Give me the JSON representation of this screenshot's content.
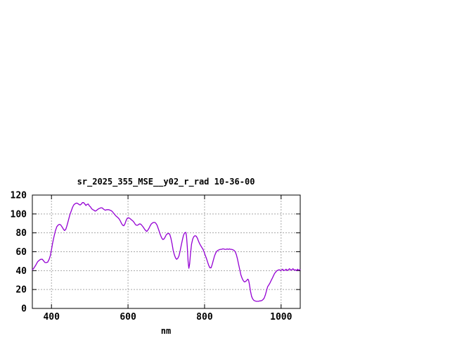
{
  "window": {
    "background": "#ffffff"
  },
  "chart_data": {
    "type": "line",
    "title": "sr_2025_355_MSE__y02_r_rad 10-36-00",
    "xlabel": "nm",
    "ylabel": "",
    "xlim": [
      350,
      1050
    ],
    "ylim": [
      0,
      120
    ],
    "xticks": [
      400,
      600,
      800,
      1000
    ],
    "yticks": [
      0,
      20,
      40,
      60,
      80,
      100,
      120
    ],
    "grid": true,
    "legend_position": "none",
    "line_color": "#9400D3",
    "grid_color": "#a8a8a8",
    "axis_color": "#000000",
    "points": [
      [
        350,
        41
      ],
      [
        353,
        42
      ],
      [
        356,
        44
      ],
      [
        360,
        46.5
      ],
      [
        364,
        49.5
      ],
      [
        368,
        51
      ],
      [
        372,
        52
      ],
      [
        376,
        52
      ],
      [
        379,
        50.5
      ],
      [
        383,
        48.5
      ],
      [
        387,
        48.5
      ],
      [
        390,
        49
      ],
      [
        394,
        52
      ],
      [
        397,
        56
      ],
      [
        400,
        62
      ],
      [
        403,
        69
      ],
      [
        406,
        75
      ],
      [
        410,
        82
      ],
      [
        414,
        86.5
      ],
      [
        418,
        88.5
      ],
      [
        421,
        89
      ],
      [
        424,
        88.5
      ],
      [
        428,
        86
      ],
      [
        431,
        84
      ],
      [
        434,
        82.5
      ],
      [
        437,
        83.5
      ],
      [
        440,
        87
      ],
      [
        444,
        93
      ],
      [
        448,
        99
      ],
      [
        452,
        103.5
      ],
      [
        455,
        107
      ],
      [
        458,
        109.5
      ],
      [
        462,
        111
      ],
      [
        466,
        111.5
      ],
      [
        469,
        111
      ],
      [
        472,
        110
      ],
      [
        475,
        109.5
      ],
      [
        478,
        110.5
      ],
      [
        481,
        112
      ],
      [
        484,
        112
      ],
      [
        487,
        110.5
      ],
      [
        490,
        109
      ],
      [
        493,
        110
      ],
      [
        496,
        110.5
      ],
      [
        499,
        108.5
      ],
      [
        502,
        107.5
      ],
      [
        505,
        105.5
      ],
      [
        508,
        104.5
      ],
      [
        511,
        104
      ],
      [
        514,
        103
      ],
      [
        517,
        103.5
      ],
      [
        520,
        104.5
      ],
      [
        523,
        105.5
      ],
      [
        526,
        106
      ],
      [
        529,
        106.5
      ],
      [
        532,
        106.5
      ],
      [
        535,
        105.5
      ],
      [
        538,
        104.5
      ],
      [
        541,
        104
      ],
      [
        544,
        104.5
      ],
      [
        547,
        104.5
      ],
      [
        550,
        104.5
      ],
      [
        553,
        104
      ],
      [
        556,
        103.5
      ],
      [
        559,
        102.5
      ],
      [
        562,
        101
      ],
      [
        565,
        99.5
      ],
      [
        568,
        98
      ],
      [
        571,
        97
      ],
      [
        574,
        96
      ],
      [
        577,
        94.5
      ],
      [
        580,
        92.5
      ],
      [
        583,
        90
      ],
      [
        586,
        88
      ],
      [
        589,
        87.5
      ],
      [
        592,
        89.5
      ],
      [
        595,
        93
      ],
      [
        598,
        95.5
      ],
      [
        601,
        96
      ],
      [
        604,
        95.5
      ],
      [
        607,
        94.5
      ],
      [
        610,
        93.5
      ],
      [
        613,
        92.5
      ],
      [
        616,
        91
      ],
      [
        619,
        89
      ],
      [
        622,
        88
      ],
      [
        625,
        88
      ],
      [
        628,
        89
      ],
      [
        631,
        89.5
      ],
      [
        634,
        89
      ],
      [
        637,
        87.5
      ],
      [
        640,
        86
      ],
      [
        643,
        84
      ],
      [
        646,
        82.5
      ],
      [
        649,
        81.5
      ],
      [
        652,
        83
      ],
      [
        655,
        85
      ],
      [
        658,
        87.5
      ],
      [
        661,
        89.5
      ],
      [
        664,
        90.5
      ],
      [
        667,
        91
      ],
      [
        670,
        91
      ],
      [
        673,
        90
      ],
      [
        676,
        88
      ],
      [
        679,
        84.5
      ],
      [
        682,
        81
      ],
      [
        685,
        77.5
      ],
      [
        688,
        74.5
      ],
      [
        691,
        73
      ],
      [
        694,
        73.5
      ],
      [
        697,
        75.5
      ],
      [
        700,
        78
      ],
      [
        703,
        79
      ],
      [
        706,
        79.5
      ],
      [
        709,
        78.5
      ],
      [
        712,
        74.5
      ],
      [
        715,
        68.5
      ],
      [
        718,
        61.5
      ],
      [
        721,
        57
      ],
      [
        724,
        53.5
      ],
      [
        727,
        52
      ],
      [
        730,
        53
      ],
      [
        733,
        55.5
      ],
      [
        736,
        60.5
      ],
      [
        739,
        66.5
      ],
      [
        742,
        72.5
      ],
      [
        745,
        77.5
      ],
      [
        748,
        80
      ],
      [
        751,
        80.5
      ],
      [
        753,
        76
      ],
      [
        755,
        65
      ],
      [
        757,
        50
      ],
      [
        759,
        42.5
      ],
      [
        761,
        47
      ],
      [
        763,
        57
      ],
      [
        766,
        68
      ],
      [
        769,
        73.5
      ],
      [
        772,
        76
      ],
      [
        775,
        77
      ],
      [
        778,
        76.5
      ],
      [
        781,
        74.5
      ],
      [
        784,
        71.5
      ],
      [
        787,
        68.5
      ],
      [
        790,
        66.5
      ],
      [
        793,
        64.5
      ],
      [
        796,
        62.5
      ],
      [
        799,
        59.5
      ],
      [
        802,
        56
      ],
      [
        805,
        53
      ],
      [
        808,
        49
      ],
      [
        811,
        45.5
      ],
      [
        814,
        43
      ],
      [
        817,
        43
      ],
      [
        820,
        46.5
      ],
      [
        823,
        51
      ],
      [
        826,
        55.5
      ],
      [
        829,
        58.5
      ],
      [
        832,
        60.5
      ],
      [
        835,
        61.5
      ],
      [
        838,
        62
      ],
      [
        841,
        62.5
      ],
      [
        844,
        62.5
      ],
      [
        847,
        63
      ],
      [
        850,
        63
      ],
      [
        853,
        62.5
      ],
      [
        856,
        62.5
      ],
      [
        859,
        63
      ],
      [
        862,
        62.5
      ],
      [
        865,
        63
      ],
      [
        868,
        62.5
      ],
      [
        871,
        62.5
      ],
      [
        874,
        62
      ],
      [
        877,
        61.5
      ],
      [
        880,
        60
      ],
      [
        883,
        57
      ],
      [
        886,
        52.5
      ],
      [
        889,
        46.5
      ],
      [
        892,
        41
      ],
      [
        895,
        35.5
      ],
      [
        898,
        32
      ],
      [
        901,
        29.5
      ],
      [
        904,
        28
      ],
      [
        907,
        28.5
      ],
      [
        910,
        29.5
      ],
      [
        913,
        31
      ],
      [
        915,
        30
      ],
      [
        917,
        26
      ],
      [
        920,
        18.5
      ],
      [
        923,
        12.5
      ],
      [
        926,
        10
      ],
      [
        929,
        8.5
      ],
      [
        932,
        8
      ],
      [
        935,
        7.5
      ],
      [
        938,
        7.5
      ],
      [
        941,
        7.5
      ],
      [
        944,
        8
      ],
      [
        947,
        8
      ],
      [
        950,
        8.5
      ],
      [
        953,
        9.5
      ],
      [
        956,
        11
      ],
      [
        959,
        14.5
      ],
      [
        962,
        19
      ],
      [
        965,
        23
      ],
      [
        968,
        25
      ],
      [
        971,
        27
      ],
      [
        974,
        29.5
      ],
      [
        977,
        32
      ],
      [
        980,
        34.5
      ],
      [
        983,
        37
      ],
      [
        986,
        38.5
      ],
      [
        989,
        40
      ],
      [
        992,
        40.5
      ],
      [
        995,
        41
      ],
      [
        998,
        40
      ],
      [
        1001,
        40.5
      ],
      [
        1004,
        41.5
      ],
      [
        1007,
        40
      ],
      [
        1010,
        40.5
      ],
      [
        1013,
        41.5
      ],
      [
        1016,
        40
      ],
      [
        1019,
        41
      ],
      [
        1022,
        42
      ],
      [
        1025,
        40.5
      ],
      [
        1028,
        41
      ],
      [
        1031,
        42
      ],
      [
        1034,
        40.5
      ],
      [
        1037,
        41
      ],
      [
        1040,
        40
      ],
      [
        1043,
        41.5
      ],
      [
        1046,
        40.5
      ],
      [
        1049,
        41
      ],
      [
        1050,
        41
      ]
    ]
  }
}
